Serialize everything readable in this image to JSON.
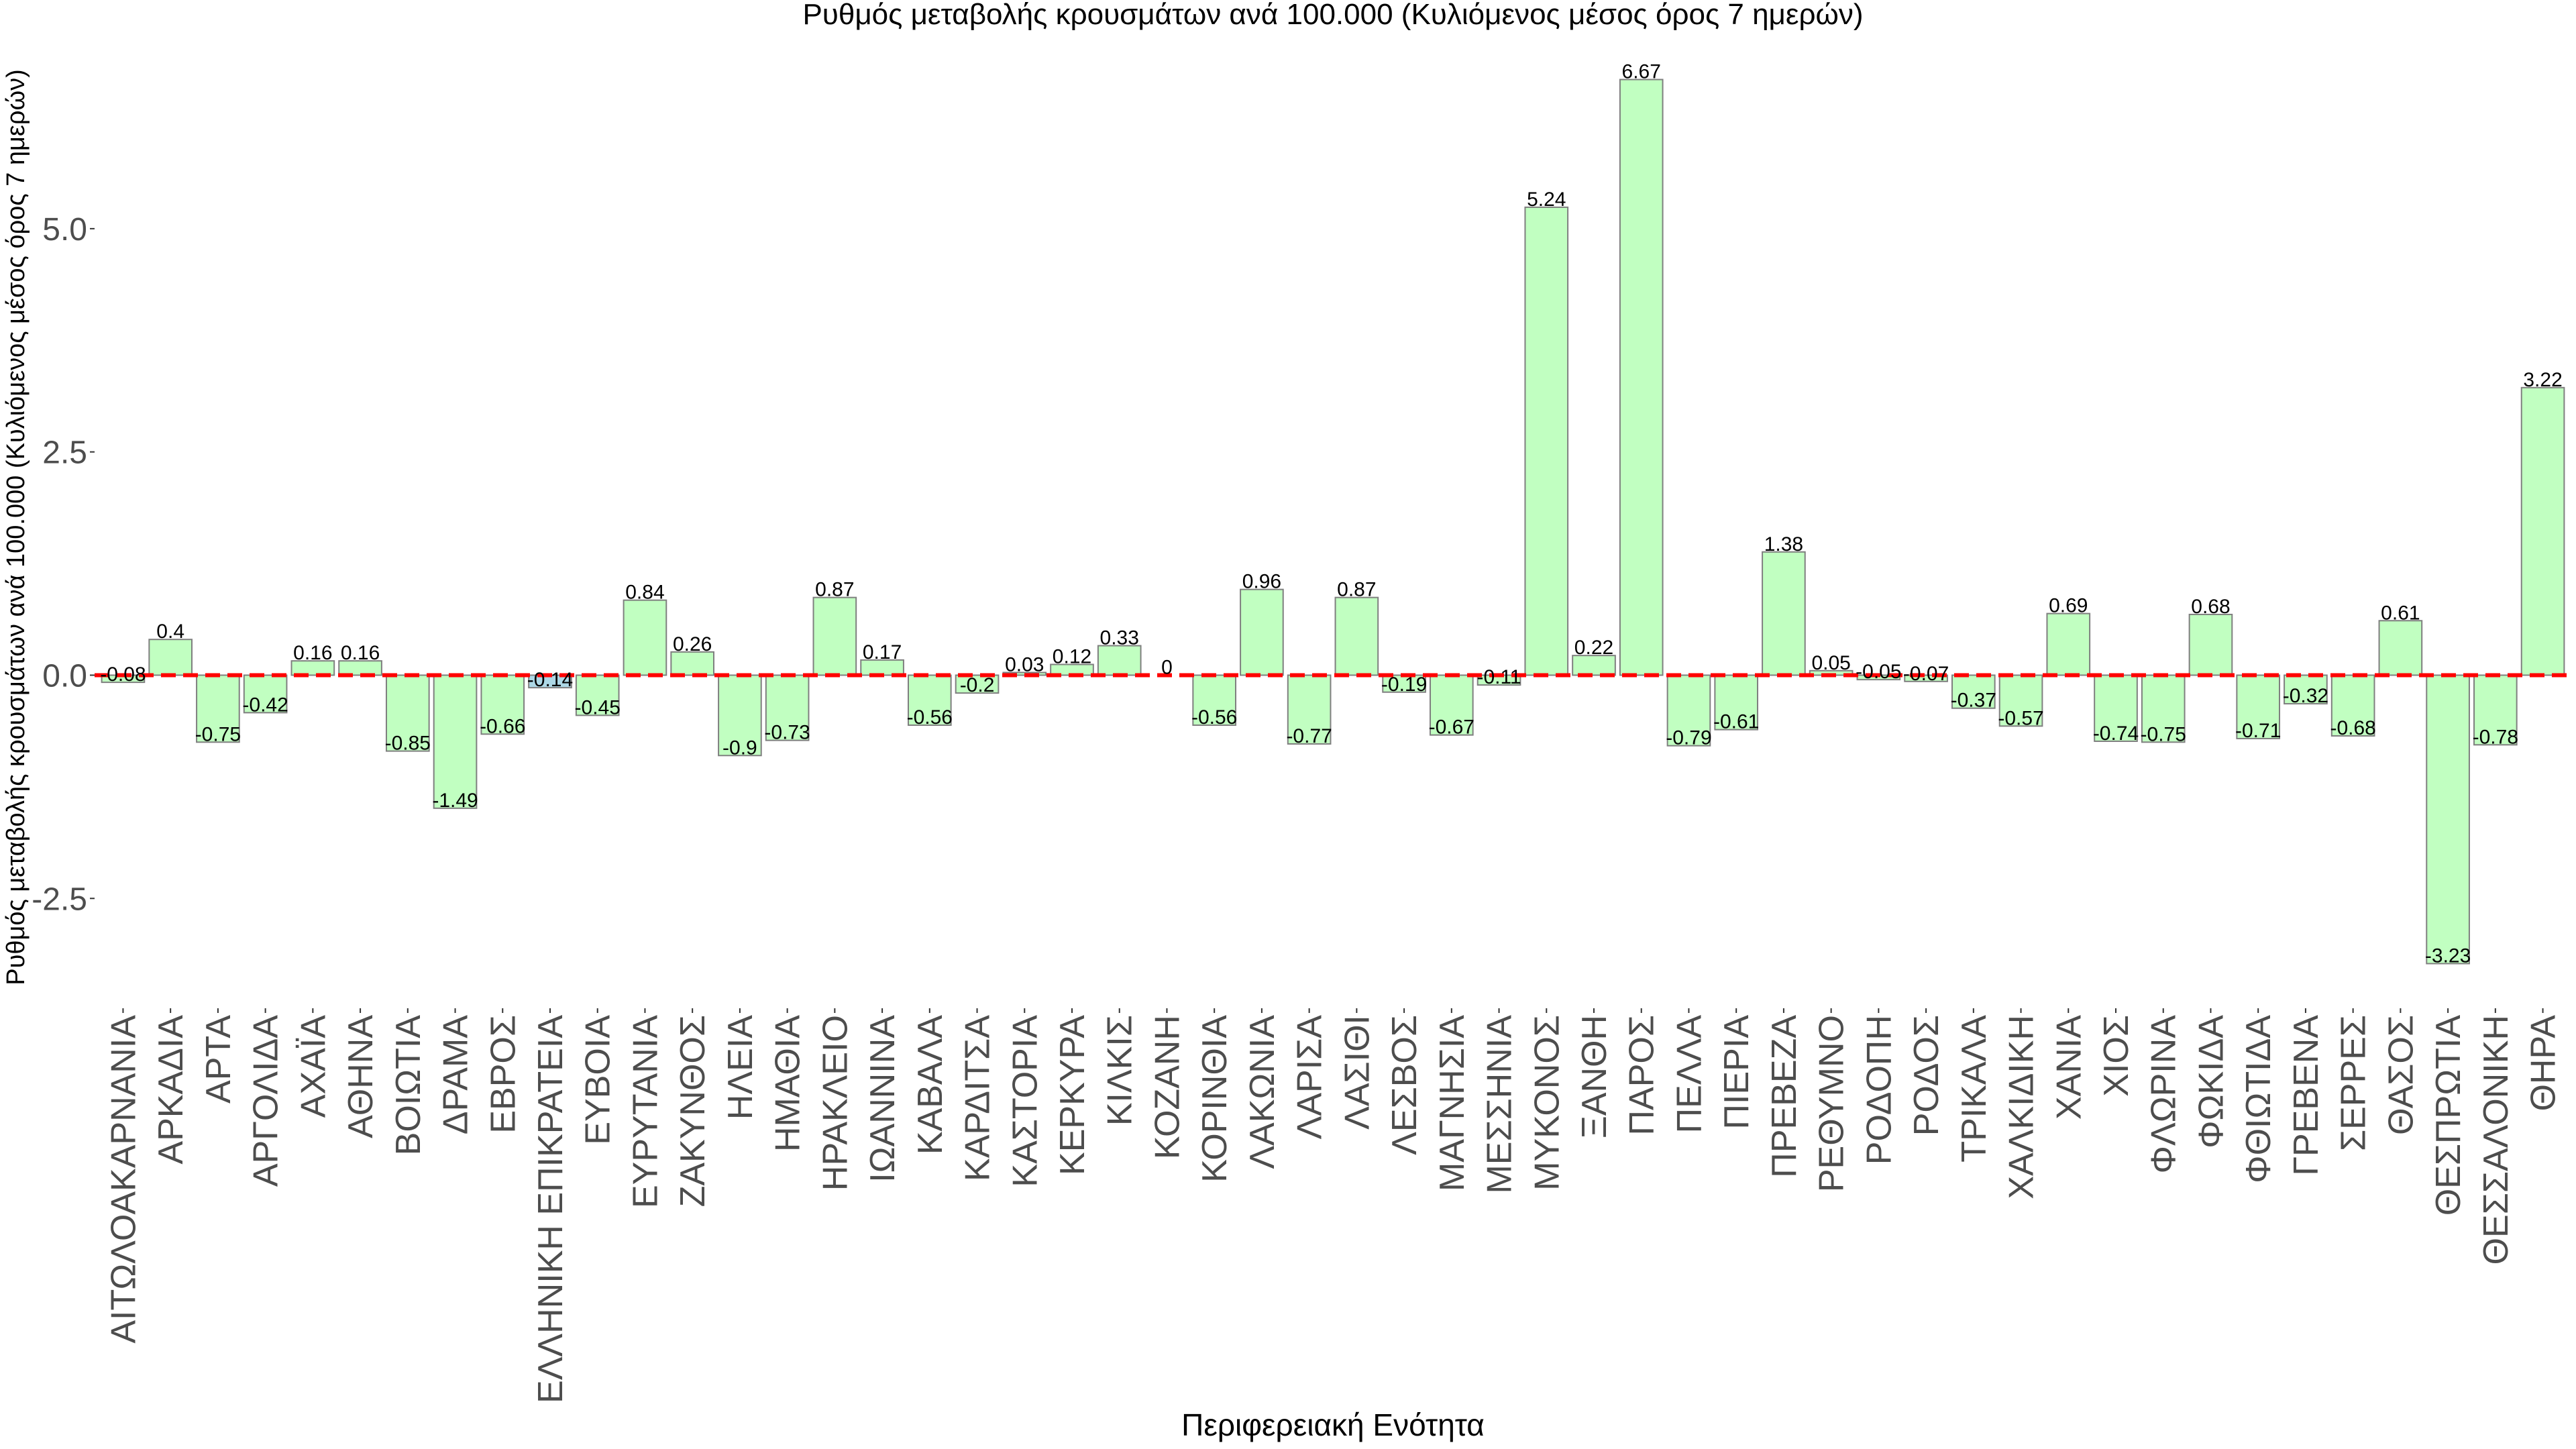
{
  "chart_data": {
    "type": "bar",
    "title": "Ρυθμός μεταβολής κρουσμάτων ανά 100.000 (Κυλιόμενος μέσος όρος 7 ημερών)",
    "xlabel": "Περιφερειακή Ενότητα",
    "ylabel": "Ρυθμός μεταβολής κρουσμάτων ανά 100.000 (Κυλιόμενος μέσος όρος 7 ημερών)",
    "categories": [
      "ΑΙΤΩΛΟΑΚΑΡΝΑΝΙΑ",
      "ΑΡΚΑΔΙΑ",
      "ΑΡΤΑ",
      "ΑΡΓΟΛΙΔΑ",
      "ΑΧΑΪΑ",
      "ΑΘΗΝΑ",
      "ΒΟΙΩΤΙΑ",
      "ΔΡΑΜΑ",
      "ΕΒΡΟΣ",
      "ΕΛΛΗΝΙΚΗ ΕΠΙΚΡΑΤΕΙΑ",
      "ΕΥΒΟΙΑ",
      "ΕΥΡΥΤΑΝΙΑ",
      "ΖΑΚΥΝΘΟΣ",
      "ΗΛΕΙΑ",
      "ΗΜΑΘΙΑ",
      "ΗΡΑΚΛΕΙΟ",
      "ΙΩΑΝΝΙΝΑ",
      "ΚΑΒΑΛΑ",
      "ΚΑΡΔΙΤΣΑ",
      "ΚΑΣΤΟΡΙΑ",
      "ΚΕΡΚΥΡΑ",
      "ΚΙΛΚΙΣ",
      "ΚΟΖΑΝΗ",
      "ΚΟΡΙΝΘΙΑ",
      "ΛΑΚΩΝΙΑ",
      "ΛΑΡΙΣΑ",
      "ΛΑΣΙΘΙ",
      "ΛΕΣΒΟΣ",
      "ΜΑΓΝΗΣΙΑ",
      "ΜΕΣΣΗΝΙΑ",
      "ΜΥΚΟΝΟΣ",
      "ΞΑΝΘΗ",
      "ΠΑΡΟΣ",
      "ΠΕΛΛΑ",
      "ΠΙΕΡΙΑ",
      "ΠΡΕΒΕΖΑ",
      "ΡΕΘΥΜΝΟ",
      "ΡΟΔΟΠΗ",
      "ΡΟΔΟΣ",
      "ΤΡΙΚΑΛΑ",
      "ΧΑΛΚΙΔΙΚΗ",
      "ΧΑΝΙΑ",
      "ΧΙΟΣ",
      "ΦΛΩΡΙΝΑ",
      "ΦΩΚΙΔΑ",
      "ΦΘΙΩΤΙΔΑ",
      "ΓΡΕΒΕΝΑ",
      "ΣΕΡΡΕΣ",
      "ΘΑΣΟΣ",
      "ΘΕΣΠΡΩΤΙΑ",
      "ΘΕΣΣΑΛΟΝΙΚΗ",
      "ΘΗΡΑ"
    ],
    "values": [
      -0.08,
      0.4,
      -0.75,
      -0.42,
      0.16,
      0.16,
      -0.85,
      -1.49,
      -0.66,
      -0.14,
      -0.45,
      0.84,
      0.26,
      -0.9,
      -0.73,
      0.87,
      0.17,
      -0.56,
      -0.2,
      0.03,
      0.12,
      0.33,
      0,
      -0.56,
      0.96,
      -0.77,
      0.87,
      -0.19,
      -0.67,
      -0.11,
      5.24,
      0.22,
      6.67,
      -0.79,
      -0.61,
      1.38,
      0.05,
      -0.05,
      -0.07,
      -0.37,
      -0.57,
      0.69,
      -0.74,
      -0.75,
      0.68,
      -0.71,
      -0.32,
      -0.68,
      0.61,
      -3.23,
      -0.78,
      3.22
    ],
    "bar_fills": [
      "#C1FFC1",
      "#C1FFC1",
      "#C1FFC1",
      "#C1FFC1",
      "#C1FFC1",
      "#C1FFC1",
      "#C1FFC1",
      "#C1FFC1",
      "#C1FFC1",
      "#ADD8E6",
      "#C1FFC1",
      "#C1FFC1",
      "#C1FFC1",
      "#C1FFC1",
      "#C1FFC1",
      "#C1FFC1",
      "#C1FFC1",
      "#C1FFC1",
      "#C1FFC1",
      "#C1FFC1",
      "#C1FFC1",
      "#C1FFC1",
      "#C1FFC1",
      "#C1FFC1",
      "#C1FFC1",
      "#C1FFC1",
      "#C1FFC1",
      "#C1FFC1",
      "#C1FFC1",
      "#C1FFC1",
      "#C1FFC1",
      "#C1FFC1",
      "#C1FFC1",
      "#C1FFC1",
      "#C1FFC1",
      "#C1FFC1",
      "#C1FFC1",
      "#C1FFC1",
      "#C1FFC1",
      "#C1FFC1",
      "#C1FFC1",
      "#C1FFC1",
      "#C1FFC1",
      "#C1FFC1",
      "#C1FFC1",
      "#C1FFC1",
      "#C1FFC1",
      "#C1FFC1",
      "#C1FFC1",
      "#C1FFC1",
      "#C1FFC1",
      "#C1FFC1"
    ],
    "bar_border": "#7F7F7F",
    "ylim": [
      -3.73,
      7.17
    ],
    "yticks": [
      -2.5,
      0,
      2.5,
      5
    ],
    "ytick_labels": [
      "-2.5",
      "0.0",
      "2.5",
      "5.0"
    ],
    "reference_line": {
      "y": 0,
      "color": "#FF0000",
      "dashed": true
    },
    "grid": false
  }
}
